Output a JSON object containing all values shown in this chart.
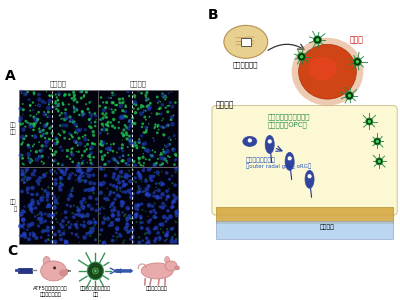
{
  "bg_color": "#ffffff",
  "label_A": "A",
  "label_B": "B",
  "label_C": "C",
  "text_no_lesion": "傷害なし",
  "text_lesion": "傷害あり",
  "text_row1_top": "大子",
  "text_row1_bot": "皮質",
  "text_row2_top": "ヘイ",
  "text_row2_bot": "質",
  "text_human_brain": "ヒト新生児脳",
  "text_lesion_part": "傷害部",
  "text_white_matter": "大脳白質",
  "text_OPC": "オリゴデンドロサイト\n前駆細胞（OPC）",
  "text_oRG_line1": "外側放射状グリア",
  "text_oRG_line2": "（outer radal glia： oRG）",
  "text_ventricle": "脳室下帯",
  "text_ATF5_line1": "ATF5を活性化させる",
  "text_ATF5_line2": "薬剤を脱相投与",
  "text_OPC_increase_line1": "オリゴデンドロサイト",
  "text_OPC_increase_line2": "増加",
  "text_gait_improve": "歩行機能が改善",
  "green_color": "#228844",
  "blue_color": "#223388",
  "red_color": "#cc3300",
  "opc_text_color": "#228844",
  "org_text_color": "#2255bb",
  "brain_fill": "#e8d090",
  "lesion_fill": "#cc3300",
  "lesion_glow": "#dd6633",
  "pig_fill": "#e8aaaa",
  "pig_edge": "#cc8888",
  "yellow_fill": "#fdf8d0",
  "gold_fill": "#d4a844",
  "blue_fill": "#aaccee"
}
